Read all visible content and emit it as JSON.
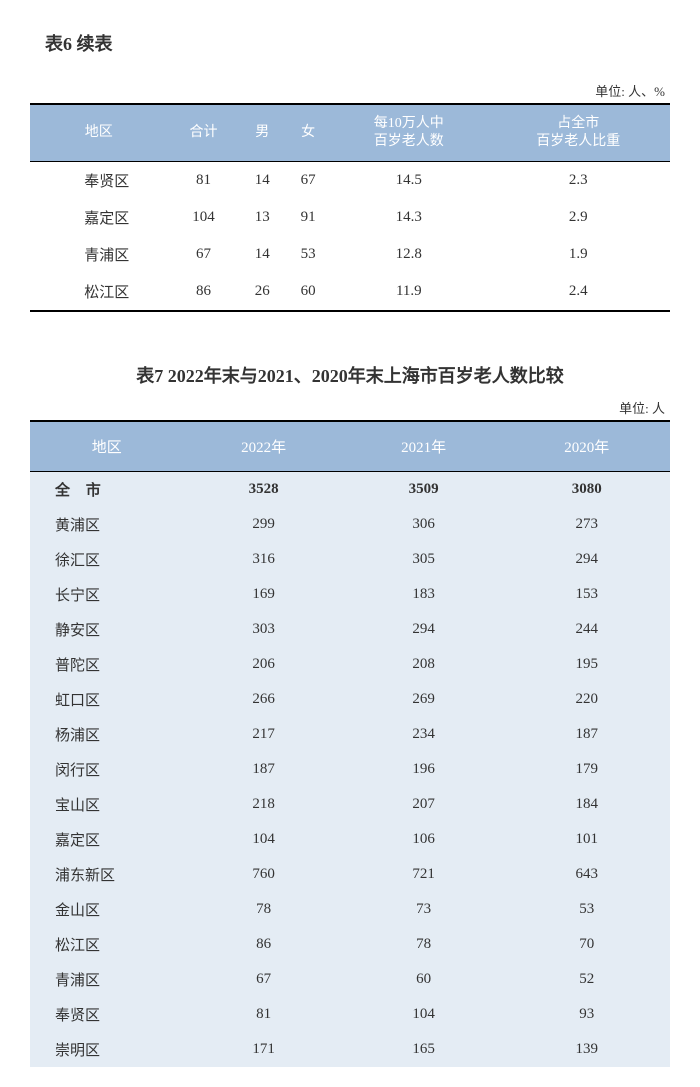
{
  "table6": {
    "title": "表6  续表",
    "unit": "单位: 人、%",
    "columns": [
      "地区",
      "合计",
      "男",
      "女",
      "每10万人中\n百岁老人数",
      "占全市\n百岁老人比重"
    ],
    "rows": [
      [
        "奉贤区",
        "81",
        "14",
        "67",
        "14.5",
        "2.3"
      ],
      [
        "嘉定区",
        "104",
        "13",
        "91",
        "14.3",
        "2.9"
      ],
      [
        "青浦区",
        "67",
        "14",
        "53",
        "12.8",
        "1.9"
      ],
      [
        "松江区",
        "86",
        "26",
        "60",
        "11.9",
        "2.4"
      ]
    ],
    "header_bg": "#9cb9d9",
    "header_fg": "#ffffff"
  },
  "table7": {
    "title": "表7 2022年末与2021、2020年末上海市百岁老人数比较",
    "unit": "单位: 人",
    "columns": [
      "地区",
      "2022年",
      "2021年",
      "2020年"
    ],
    "total_row": [
      "全 市",
      "3528",
      "3509",
      "3080"
    ],
    "rows": [
      [
        "黄浦区",
        "299",
        "306",
        "273"
      ],
      [
        "徐汇区",
        "316",
        "305",
        "294"
      ],
      [
        "长宁区",
        "169",
        "183",
        "153"
      ],
      [
        "静安区",
        "303",
        "294",
        "244"
      ],
      [
        "普陀区",
        "206",
        "208",
        "195"
      ],
      [
        "虹口区",
        "266",
        "269",
        "220"
      ],
      [
        "杨浦区",
        "217",
        "234",
        "187"
      ],
      [
        "闵行区",
        "187",
        "196",
        "179"
      ],
      [
        "宝山区",
        "218",
        "207",
        "184"
      ],
      [
        "嘉定区",
        "104",
        "106",
        "101"
      ],
      [
        "浦东新区",
        "760",
        "721",
        "643"
      ],
      [
        "金山区",
        "78",
        "73",
        "53"
      ],
      [
        "松江区",
        "86",
        "78",
        "70"
      ],
      [
        "青浦区",
        "67",
        "60",
        "52"
      ],
      [
        "奉贤区",
        "81",
        "104",
        "93"
      ],
      [
        "崇明区",
        "171",
        "165",
        "139"
      ]
    ],
    "header_bg": "#9cb9d9",
    "body_bg": "#e4ecf4"
  }
}
